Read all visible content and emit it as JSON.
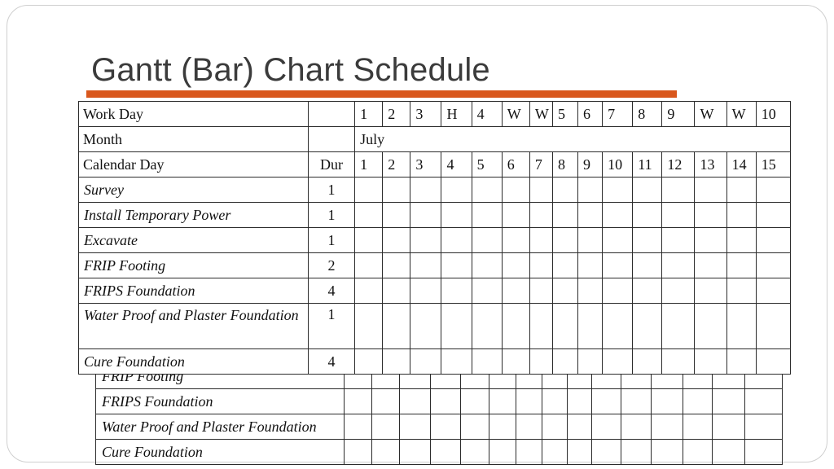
{
  "title": "Gantt (Bar) Chart Schedule",
  "accent_color": "#d9571c",
  "schedule": {
    "work_day_label": "Work Day",
    "month_label": "Month",
    "month_value": "July",
    "calendar_day_label": "Calendar Day",
    "dur_label": "Dur",
    "work_days": [
      "1",
      "2",
      "3",
      "H",
      "4",
      "W",
      "W",
      "5",
      "6",
      "7",
      "8",
      "9",
      "W",
      "W",
      "10"
    ],
    "calendar_days": [
      "1",
      "2",
      "3",
      "4",
      "5",
      "6",
      "7",
      "8",
      "9",
      "10",
      "11",
      "12",
      "13",
      "14",
      "15"
    ],
    "tasks": [
      {
        "name": "Survey",
        "dur": "1"
      },
      {
        "name": "Install Temporary Power",
        "dur": "1"
      },
      {
        "name": "Excavate",
        "dur": "1"
      },
      {
        "name": "FRIP Footing",
        "dur": "2"
      },
      {
        "name": "FRIPS Foundation",
        "dur": "4"
      },
      {
        "name": "Water Proof and Plaster Foundation",
        "dur": "1"
      },
      {
        "name": "Cure Foundation",
        "dur": "4"
      }
    ]
  },
  "background_table": {
    "rows": [
      "FRIP Footing",
      "FRIPS Foundation",
      "Water Proof and Plaster Foundation",
      "Cure Foundation"
    ]
  }
}
